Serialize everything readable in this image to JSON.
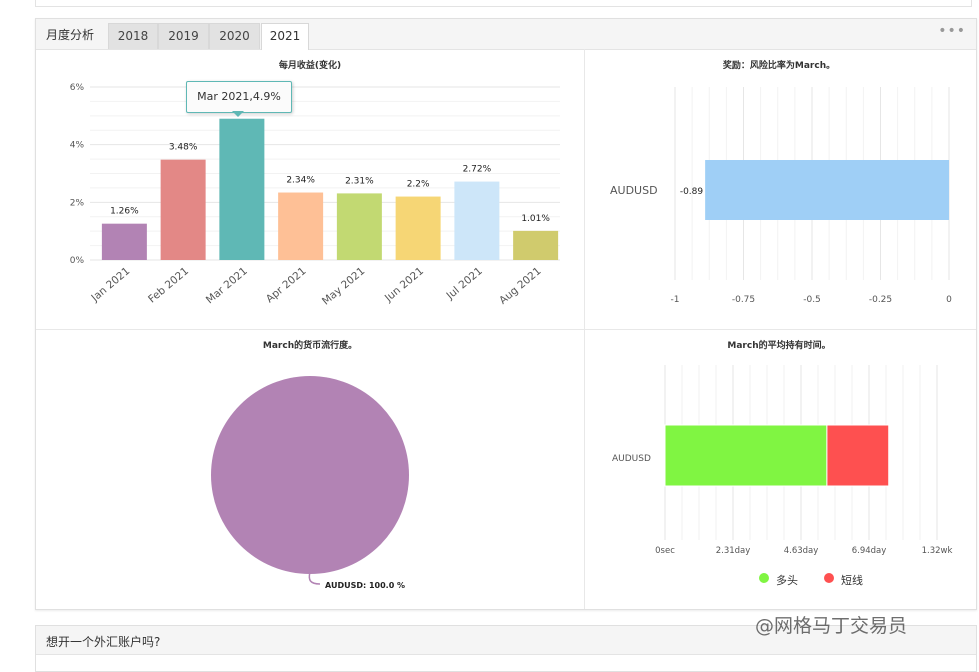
{
  "tabs": {
    "label": "月度分析",
    "years": [
      "2018",
      "2019",
      "2020",
      "2021"
    ],
    "active": "2021"
  },
  "monthly_chart": {
    "title": "每月收益(变化)",
    "tooltip": "Mar 2021,4.9%",
    "y_ticks": [
      "6%",
      "4%",
      "2%",
      "0%"
    ]
  },
  "risk_chart": {
    "title": "奖励：风险比率为March。",
    "category": "AUDUSD",
    "x_ticks": [
      "-1",
      "-0.75",
      "-0.5",
      "-0.25",
      "0"
    ]
  },
  "currency_chart": {
    "title": "March的货币流行度。",
    "slice_label": "AUDUSD: 100.0 %"
  },
  "holding_chart": {
    "title": "March的平均持有时间。",
    "category": "AUDUSD",
    "x_ticks": [
      "0sec",
      "2.31day",
      "4.63day",
      "6.94day",
      "1.32wk"
    ],
    "legend": {
      "long": "多头",
      "short": "短线"
    }
  },
  "bottom_section": {
    "title": "想开一个外汇账户吗?"
  },
  "watermark": "@网格马丁交易员",
  "chart_data": [
    {
      "type": "bar",
      "title": "每月收益(变化)",
      "categories": [
        "Jan 2021",
        "Feb 2021",
        "Mar 2021",
        "Apr 2021",
        "May 2021",
        "Jun 2021",
        "Jul 2021",
        "Aug 2021"
      ],
      "values": [
        1.26,
        3.48,
        4.9,
        2.34,
        2.31,
        2.2,
        2.72,
        1.01
      ],
      "data_labels": [
        "1.26%",
        "3.48%",
        "4.9%",
        "2.34%",
        "2.31%",
        "2.2%",
        "2.72%",
        "1.01%"
      ],
      "colors": [
        "#b283b4",
        "#e38886",
        "#5fb8b5",
        "#fec096",
        "#c2d972",
        "#f6d675",
        "#cde6f9",
        "#d0cb6d"
      ],
      "ylim": [
        0,
        6
      ],
      "grid": true
    },
    {
      "type": "bar",
      "orientation": "horizontal",
      "title": "奖励：风险比率为March。",
      "categories": [
        "AUDUSD"
      ],
      "values": [
        -0.89
      ],
      "data_labels": [
        "-0.89"
      ],
      "colors": [
        "#9fcff6"
      ],
      "xlim": [
        -1,
        0
      ],
      "grid": true
    },
    {
      "type": "pie",
      "title": "March的货币流行度。",
      "labels": [
        "AUDUSD"
      ],
      "values": [
        100.0
      ],
      "colors": [
        "#b283b4"
      ]
    },
    {
      "type": "bar",
      "orientation": "horizontal",
      "stacked": true,
      "title": "March的平均持有时间。",
      "categories": [
        "AUDUSD"
      ],
      "series": [
        {
          "name": "多头",
          "values": [
            5.5
          ],
          "color": "#80f542"
        },
        {
          "name": "短线",
          "values": [
            2.1
          ],
          "color": "#fe5050"
        }
      ],
      "xlim": [
        0,
        9.24
      ],
      "x_unit": "day",
      "legend": "bottom",
      "grid": true
    }
  ]
}
